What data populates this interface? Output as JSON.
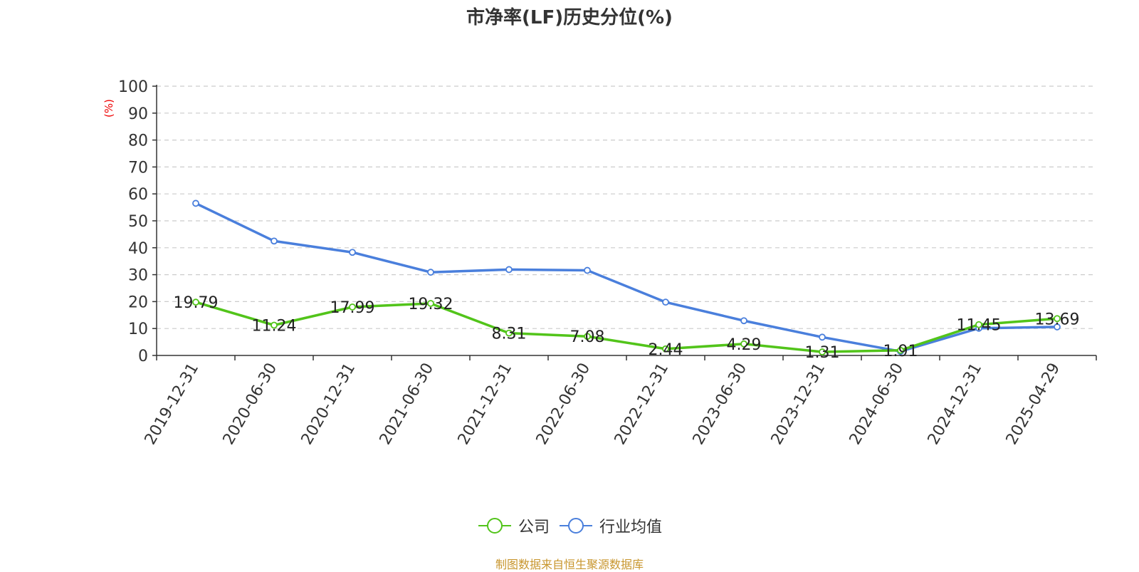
{
  "chart_data": {
    "type": "line",
    "title": "市净率(LF)历史分位(%)",
    "ylabel": "(%)",
    "ylim": [
      0,
      100
    ],
    "yticks": [
      0,
      10,
      20,
      30,
      40,
      50,
      60,
      70,
      80,
      90,
      100
    ],
    "categories": [
      "2019-12-31",
      "2020-06-30",
      "2020-12-31",
      "2021-06-30",
      "2021-12-31",
      "2022-06-30",
      "2022-12-31",
      "2023-06-30",
      "2023-12-31",
      "2024-06-30",
      "2024-12-31",
      "2025-04-29"
    ],
    "series": [
      {
        "name": "公司",
        "color": "#52c41a",
        "values": [
          19.79,
          11.24,
          17.99,
          19.32,
          8.31,
          7.08,
          2.44,
          4.29,
          1.31,
          1.91,
          11.45,
          13.69
        ],
        "show_labels": true
      },
      {
        "name": "行业均值",
        "color": "#4a7fdc",
        "values": [
          56.5,
          42.5,
          38.3,
          30.9,
          31.9,
          31.6,
          19.8,
          12.9,
          6.8,
          1.5,
          10.1,
          10.6
        ],
        "show_labels": false
      }
    ],
    "grid": true,
    "legend_position": "bottom"
  },
  "source": "制图数据来自恒生聚源数据库"
}
